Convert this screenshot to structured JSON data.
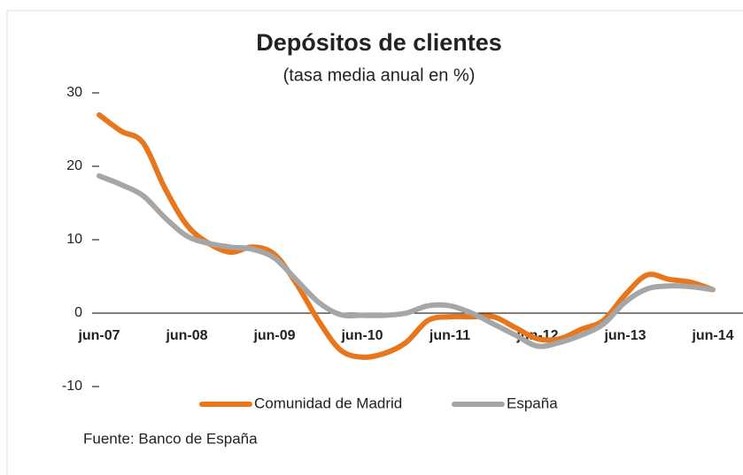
{
  "chart_data": {
    "type": "line",
    "title": "Depósitos de clientes",
    "subtitle": "(tasa media anual en %)",
    "source": "Fuente: Banco de España",
    "categories": [
      "jun-07",
      null,
      null,
      null,
      "jun-08",
      null,
      null,
      null,
      "jun-09",
      null,
      null,
      null,
      "jun-10",
      null,
      null,
      null,
      "jun-11",
      null,
      null,
      null,
      "jun-12",
      null,
      null,
      null,
      "jun-13",
      null,
      null,
      null,
      "jun-14"
    ],
    "series": [
      {
        "name": "Comunidad de Madrid",
        "color": "#e8761c",
        "values": [
          27,
          24.8,
          23.2,
          17,
          12,
          9.5,
          8.3,
          9,
          8,
          4,
          -1,
          -5,
          -6,
          -5.5,
          -4,
          -1,
          -0.5,
          -0.5,
          -0.5,
          -2,
          -3.5,
          -3.5,
          -2.2,
          -1,
          2.5,
          5.2,
          4.6,
          4.2,
          3.2
        ]
      },
      {
        "name": "España",
        "color": "#a6a6a6",
        "values": [
          18.7,
          17.5,
          16,
          13,
          10.5,
          9.5,
          9,
          8.7,
          7.5,
          4.5,
          1.5,
          -0.2,
          -0.3,
          -0.3,
          0,
          1,
          1,
          0,
          -1.5,
          -3,
          -4.5,
          -4,
          -3,
          -1.5,
          1.5,
          3.3,
          3.7,
          3.6,
          3.2
        ]
      }
    ],
    "ylim": [
      -10,
      30
    ],
    "yticks": [
      -10,
      0,
      10,
      20,
      30
    ],
    "legend": "bottom"
  }
}
